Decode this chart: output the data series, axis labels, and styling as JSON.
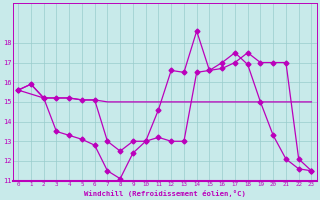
{
  "xlabel": "Windchill (Refroidissement éolien,°C)",
  "bg_color": "#c8eaea",
  "grid_color": "#99cccc",
  "line_color": "#bb00bb",
  "x_min": 0,
  "x_max": 23,
  "y_min": 11,
  "y_max": 19,
  "yticks": [
    11,
    12,
    13,
    14,
    15,
    16,
    17,
    18
  ],
  "xticks": [
    0,
    1,
    2,
    3,
    4,
    5,
    6,
    7,
    8,
    9,
    10,
    11,
    12,
    13,
    14,
    15,
    16,
    17,
    18,
    19,
    20,
    21,
    22,
    23
  ],
  "series": [
    {
      "x": [
        0,
        1,
        2,
        3,
        4,
        5,
        6,
        7,
        8,
        9,
        10,
        11,
        12,
        13,
        14,
        15,
        16,
        17,
        18,
        19,
        20,
        21,
        22,
        23
      ],
      "y": [
        15.6,
        15.9,
        15.2,
        15.2,
        15.2,
        15.1,
        15.1,
        15.0,
        15.0,
        15.0,
        15.0,
        15.0,
        15.0,
        15.0,
        15.0,
        15.0,
        15.0,
        15.0,
        15.0,
        15.0,
        15.0,
        15.0,
        15.0,
        15.0
      ]
    },
    {
      "x": [
        0,
        1,
        2,
        3,
        4,
        5,
        6,
        7,
        8,
        9,
        10,
        11,
        12,
        13,
        14,
        15,
        16,
        17,
        18,
        19,
        20,
        21,
        22,
        23
      ],
      "y": [
        15.6,
        15.9,
        15.2,
        13.5,
        13.3,
        13.1,
        12.8,
        11.5,
        11.1,
        12.4,
        13.0,
        14.6,
        16.6,
        16.5,
        18.6,
        16.6,
        17.0,
        17.5,
        16.9,
        15.0,
        13.3,
        12.1,
        11.6,
        11.5
      ]
    },
    {
      "x": [
        0,
        2,
        3,
        4,
        5,
        6,
        7,
        8,
        9,
        10,
        11,
        12,
        13,
        14,
        15,
        16,
        17,
        18,
        19,
        20,
        21,
        22,
        23
      ],
      "y": [
        15.6,
        15.2,
        15.2,
        15.2,
        15.1,
        15.1,
        13.0,
        12.5,
        13.0,
        13.0,
        13.2,
        13.0,
        13.0,
        16.5,
        16.6,
        16.7,
        17.0,
        17.5,
        17.0,
        17.0,
        17.0,
        12.1,
        11.5
      ]
    }
  ]
}
